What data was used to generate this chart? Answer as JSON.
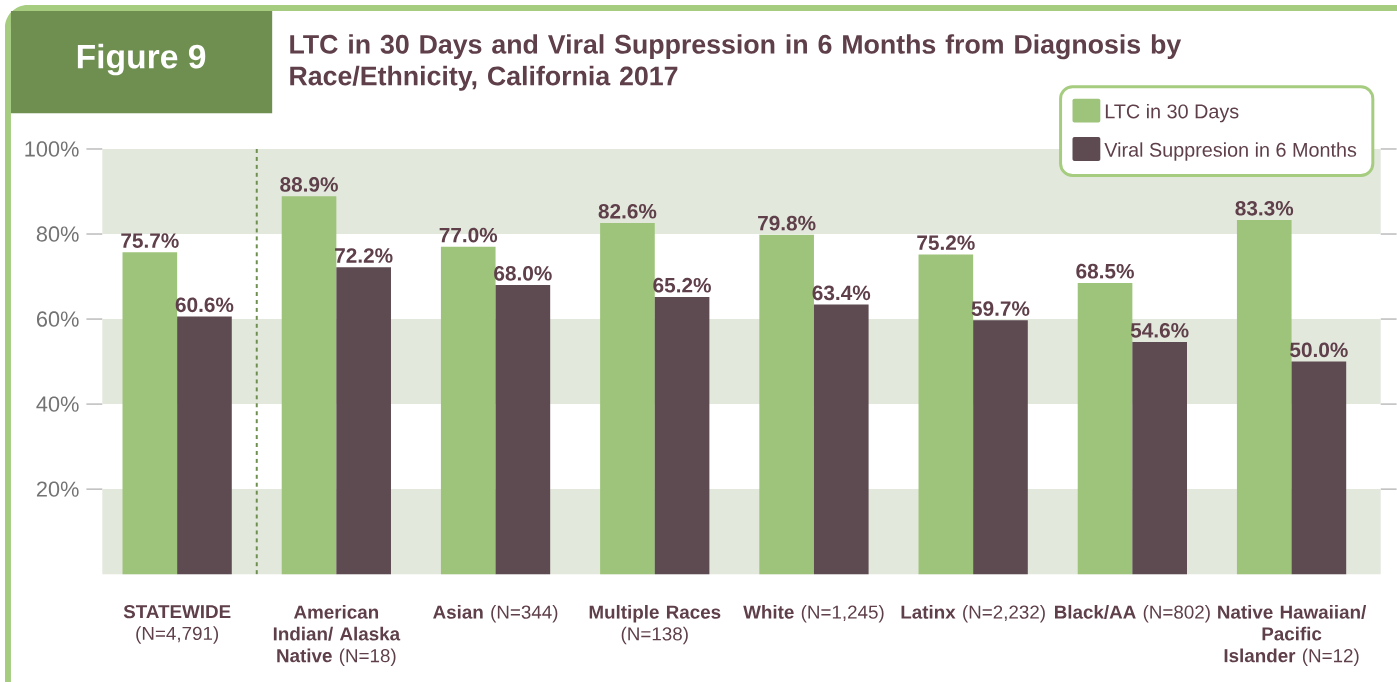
{
  "chart_data": {
    "type": "bar",
    "title": "LTC in 30 Days and Viral Suppression in 6 Months from Diagnosis by Race/Ethnicity, California 2017",
    "annotations": [
      "Figure 9"
    ],
    "categories": [
      "**STATEWIDE** (N=4,791)",
      "**American Indian/ Alaska Native** (N=18)",
      "**Asian** (N=344)",
      "**Multiple Races** (N=138)",
      "**White** (N=1,245)",
      "**Latinx** (N=2,232)",
      "**Black/AA** (N=802)",
      "**Native Hawaiian/ Pacific Islander** (N=12)"
    ],
    "series": [
      {
        "name": "LTC in 30 Days",
        "color": "#9dc47a",
        "values": [
          75.7,
          88.9,
          77.0,
          82.6,
          79.8,
          75.2,
          68.5,
          83.3
        ],
        "value_labels": [
          "75.7%",
          "88.9%",
          "77.0%",
          "82.6%",
          "79.8%",
          "75.2%",
          "68.5%",
          "83.3%"
        ]
      },
      {
        "name": "Viral Suppresion in 6 Months",
        "color": "#5e4a51",
        "values": [
          60.6,
          72.2,
          68.0,
          65.2,
          63.4,
          59.7,
          54.6,
          50.0
        ],
        "value_labels": [
          "60.6%",
          "72.2%",
          "68.0%",
          "65.2%",
          "63.4%",
          "59.7%",
          "54.6%",
          "50.0%"
        ]
      }
    ],
    "ylim": [
      0,
      100
    ],
    "yticks": [
      {
        "value": 20,
        "label": "20%"
      },
      {
        "value": 40,
        "label": "40%"
      },
      {
        "value": 60,
        "label": "60%"
      },
      {
        "value": 80,
        "label": "80%"
      },
      {
        "value": 100,
        "label": "100%"
      }
    ],
    "bands": [
      {
        "axis": "y",
        "from": 0,
        "to": 20,
        "color": "#e3e8dd"
      },
      {
        "axis": "y",
        "from": 40,
        "to": 60,
        "color": "#e3e8dd"
      },
      {
        "axis": "y",
        "from": 80,
        "to": 100,
        "color": "#e3e8dd"
      }
    ],
    "legend": "top right"
  }
}
